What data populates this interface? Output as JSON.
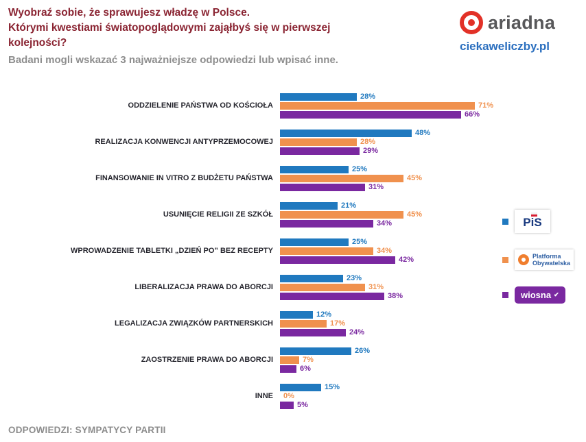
{
  "header": {
    "title_lines": [
      "Wyobraź sobie, że sprawujesz władzę w Polsce.",
      "Którymi kwestiami światopoglądowymi zająłbyś się w pierwszej",
      "kolejności?"
    ],
    "subtitle": "Badani mogli wskazać 3 najważniejsze odpowiedzi lub wpisać inne.",
    "brand": {
      "logo_text": "ariadna",
      "site": "ciekaweliczby.pl",
      "logo_color": "#E23127",
      "site_color": "#2B6FBF"
    }
  },
  "legend": {
    "position": "right",
    "items": [
      {
        "party": "PiS",
        "swatch_color": "#2079BF",
        "logo_text": "PiS"
      },
      {
        "party": "Platforma Obywatelska",
        "swatch_color": "#F0914E",
        "logo_text": "Platforma Obywatelska"
      },
      {
        "party": "Wiosna",
        "swatch_color": "#7A28A0",
        "logo_text": "wiosna"
      }
    ]
  },
  "icons": {
    "wiosna_check": "✔"
  },
  "footer": {
    "note": "ODPOWIEDZI: SYMPATYCY PARTII"
  },
  "chart_data": {
    "type": "bar",
    "orientation": "horizontal",
    "unit": "%",
    "xlim": [
      0,
      75
    ],
    "grid": false,
    "value_labels": true,
    "legend_position": "right",
    "categories": [
      "ODDZIELENIE PAŃSTWA OD KOŚCIOŁA",
      "REALIZACJA KONWENCJI ANTYPRZEMOCOWEJ",
      "FINANSOWANIE IN VITRO Z BUDŻETU PAŃSTWA",
      "USUNIĘCIE RELIGII ZE SZKÓŁ",
      "WPROWADZENIE TABLETKI „DZIEŃ PO” BEZ RECEPTY",
      "LIBERALIZACJA PRAWA DO ABORCJI",
      "LEGALIZACJA ZWIĄZKÓW PARTNERSKICH",
      "ZAOSTRZENIE PRAWA DO ABORCJI",
      "INNE"
    ],
    "series": [
      {
        "name": "PiS",
        "color": "#2079BF",
        "values": [
          28,
          48,
          25,
          21,
          25,
          23,
          12,
          26,
          15
        ]
      },
      {
        "name": "Platforma Obywatelska",
        "color": "#F0914E",
        "values": [
          71,
          28,
          45,
          45,
          34,
          31,
          17,
          7,
          0
        ]
      },
      {
        "name": "Wiosna",
        "color": "#7A28A0",
        "values": [
          66,
          29,
          31,
          34,
          42,
          38,
          24,
          6,
          5
        ]
      }
    ]
  }
}
